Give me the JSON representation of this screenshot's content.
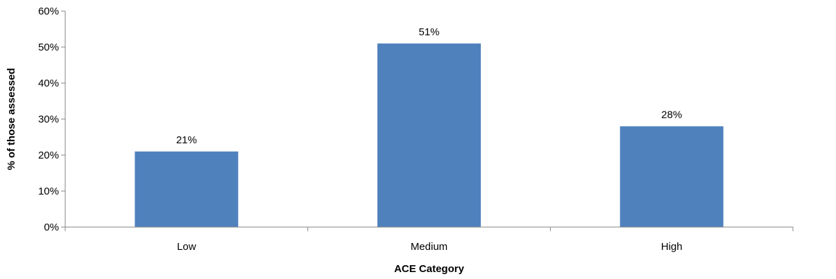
{
  "chart_data": {
    "type": "bar",
    "title": "",
    "xlabel": "ACE Category",
    "ylabel": "% of those assessed",
    "categories": [
      "Low",
      "Medium",
      "High"
    ],
    "values": [
      21,
      51,
      28
    ],
    "data_labels": [
      "21%",
      "51%",
      "28%"
    ],
    "ylim": [
      0,
      60
    ],
    "yticks": [
      0,
      10,
      20,
      30,
      40,
      50,
      60
    ],
    "ytick_labels": [
      "0%",
      "10%",
      "20%",
      "30%",
      "40%",
      "50%",
      "60%"
    ],
    "grid": false,
    "legend": "none",
    "bar_color": "#4F81BD",
    "axis_color": "#868686"
  }
}
